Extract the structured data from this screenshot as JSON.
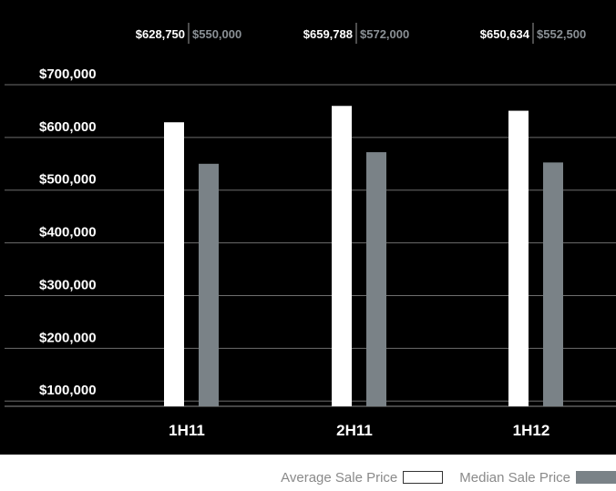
{
  "chart_data": {
    "type": "bar",
    "title": "",
    "xlabel": "",
    "ylabel": "",
    "categories": [
      "1H11",
      "2H11",
      "1H12"
    ],
    "series": [
      {
        "name": "Average Sale Price",
        "values": [
          628750,
          659788,
          650634
        ],
        "color": "#ffffff"
      },
      {
        "name": "Median Sale Price",
        "values": [
          550000,
          572000,
          552500
        ],
        "color": "#7a8287"
      }
    ],
    "value_labels": {
      "average": [
        "$628,750",
        "$659,788",
        "$650,634"
      ],
      "median": [
        "$550,000",
        "$572,000",
        "$552,500"
      ]
    },
    "y_ticks": [
      {
        "value": 100000,
        "label": "$100,000"
      },
      {
        "value": 200000,
        "label": "$200,000"
      },
      {
        "value": 300000,
        "label": "$300,000"
      },
      {
        "value": 400000,
        "label": "$400,000"
      },
      {
        "value": 500000,
        "label": "$500,000"
      },
      {
        "value": 600000,
        "label": "$600,000"
      },
      {
        "value": 700000,
        "label": "$700,000"
      }
    ],
    "ylim": [
      90000,
      700000
    ],
    "grid": true,
    "legend_position": "bottom-right",
    "background_color": "#000000",
    "average_value_label_color": "#ffffff",
    "median_value_label_color": "#8a9095"
  },
  "legend": {
    "average_label": "Average Sale Price",
    "median_label": "Median Sale Price"
  }
}
